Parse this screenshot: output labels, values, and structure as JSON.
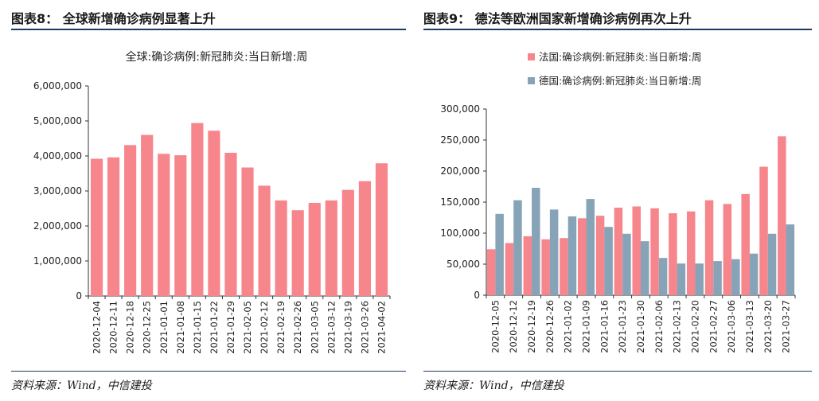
{
  "left": {
    "figure_title": "图表8：  全球新增确诊病例显著上升",
    "source": "资料来源：Wind，中信建投"
  },
  "right": {
    "figure_title": "图表9：  德法等欧洲国家新增确诊病例再次上升",
    "source": "资料来源：Wind，中信建投"
  },
  "colors": {
    "red": "#f7858c",
    "blue": "#87a3b8",
    "axis": "#333333",
    "rule": "#1f3864"
  },
  "chart_data": [
    {
      "type": "bar",
      "title": "全球:确诊病例:新冠肺炎:当日新增:周",
      "categories": [
        "2020-12-04",
        "2020-12-11",
        "2020-12-18",
        "2020-12-25",
        "2021-01-01",
        "2021-01-08",
        "2021-01-15",
        "2021-01-22",
        "2021-01-29",
        "2021-02-05",
        "2021-02-12",
        "2021-02-19",
        "2021-02-26",
        "2021-03-05",
        "2021-03-12",
        "2021-03-19",
        "2021-03-26",
        "2021-04-02"
      ],
      "values": [
        3920000,
        3960000,
        4310000,
        4600000,
        4060000,
        4020000,
        4940000,
        4720000,
        4090000,
        3670000,
        3150000,
        2730000,
        2450000,
        2660000,
        2730000,
        3030000,
        3280000,
        3790000
      ],
      "ylim": [
        0,
        6000000
      ],
      "yticks": [
        0,
        1000000,
        2000000,
        3000000,
        4000000,
        5000000,
        6000000
      ],
      "ytick_labels": [
        "0",
        "1,000,000",
        "2,000,000",
        "3,000,000",
        "4,000,000",
        "5,000,000",
        "6,000,000"
      ],
      "xlabel": "",
      "ylabel": ""
    },
    {
      "type": "bar",
      "title": "",
      "categories": [
        "2020-12-05",
        "2020-12-12",
        "2020-12-19",
        "2020-12-26",
        "2021-01-02",
        "2021-01-09",
        "2021-01-16",
        "2021-01-23",
        "2021-01-30",
        "2021-02-06",
        "2021-02-13",
        "2021-02-20",
        "2021-02-27",
        "2021-03-06",
        "2021-03-13",
        "2021-03-20",
        "2021-03-27"
      ],
      "series": [
        {
          "name": "法国:确诊病例:新冠肺炎:当日新增:周",
          "color": "#f7858c",
          "values": [
            74000,
            84000,
            95000,
            90000,
            92000,
            124000,
            128000,
            141000,
            143000,
            140000,
            132000,
            135000,
            153000,
            147000,
            163000,
            207000,
            256000
          ]
        },
        {
          "name": "德国:确诊病例:新冠肺炎:当日新增:周",
          "color": "#87a3b8",
          "values": [
            131000,
            153000,
            173000,
            138000,
            127000,
            155000,
            110000,
            99000,
            87000,
            60000,
            51000,
            51000,
            55000,
            58000,
            67000,
            99000,
            114000
          ]
        }
      ],
      "ylim": [
        0,
        300000
      ],
      "yticks": [
        0,
        50000,
        100000,
        150000,
        200000,
        250000,
        300000
      ],
      "ytick_labels": [
        "0",
        "50,000",
        "100,000",
        "150,000",
        "200,000",
        "250,000",
        "300,000"
      ],
      "legend_position": "top-left",
      "xlabel": "",
      "ylabel": ""
    }
  ]
}
